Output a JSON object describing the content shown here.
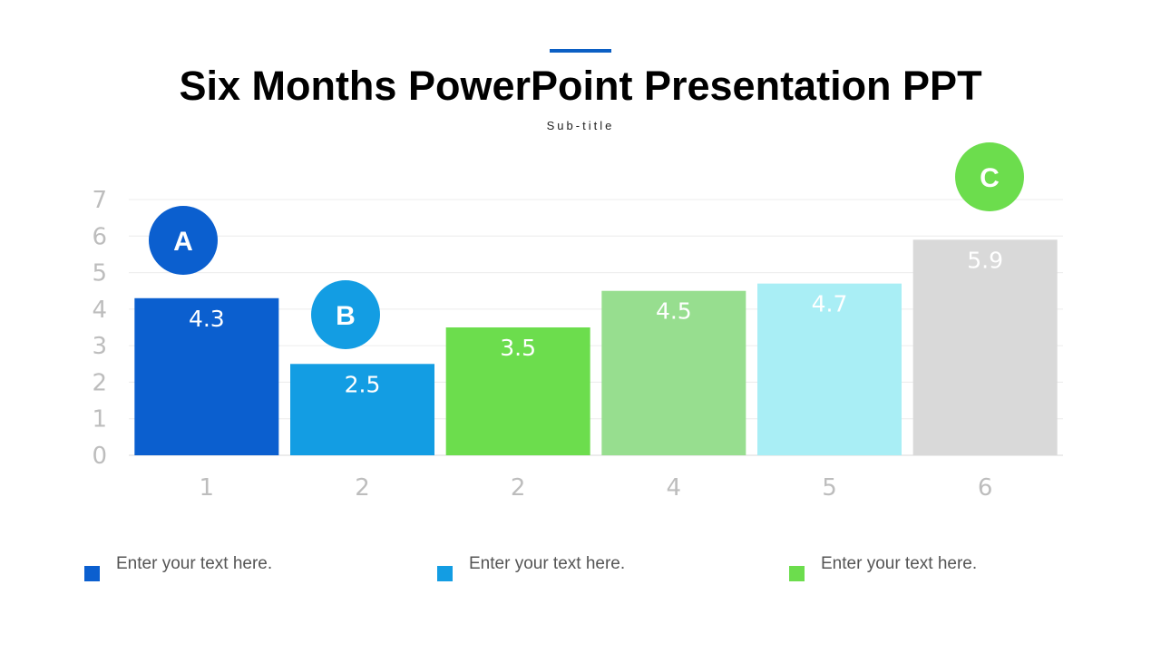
{
  "header": {
    "title": "Six Months PowerPoint Presentation PPT",
    "subtitle": "Sub-title"
  },
  "chart_data": {
    "type": "bar",
    "categories": [
      "1",
      "2",
      "2",
      "4",
      "5",
      "6"
    ],
    "values": [
      4.3,
      2.5,
      3.5,
      4.5,
      4.7,
      5.9
    ],
    "data_labels": [
      "4.3",
      "2.5",
      "3.5",
      "4.5",
      "4.7",
      "5.9"
    ],
    "colors": [
      "#0b5fcf",
      "#139de3",
      "#6cdd4d",
      "#97de8f",
      "#a9eef5",
      "#d9d9d9"
    ],
    "label_color": "#ffffff",
    "ylim": [
      0,
      7
    ],
    "yticks": [
      "0",
      "1",
      "2",
      "3",
      "4",
      "5",
      "6",
      "7"
    ],
    "grid": true,
    "title": "",
    "xlabel": "",
    "ylabel": "",
    "markers": [
      {
        "label": "A",
        "category_index": 0,
        "color": "#0b5fcf"
      },
      {
        "label": "B",
        "category_index": 1,
        "color": "#139de3"
      },
      {
        "label": "C",
        "category_index": 5,
        "color": "#6cdd4d"
      }
    ]
  },
  "legend": [
    {
      "text": "Enter your text here.",
      "color": "#0b5fcf"
    },
    {
      "text": "Enter your text here.",
      "color": "#139de3"
    },
    {
      "text": "Enter your text here.",
      "color": "#6cdd4d"
    }
  ]
}
